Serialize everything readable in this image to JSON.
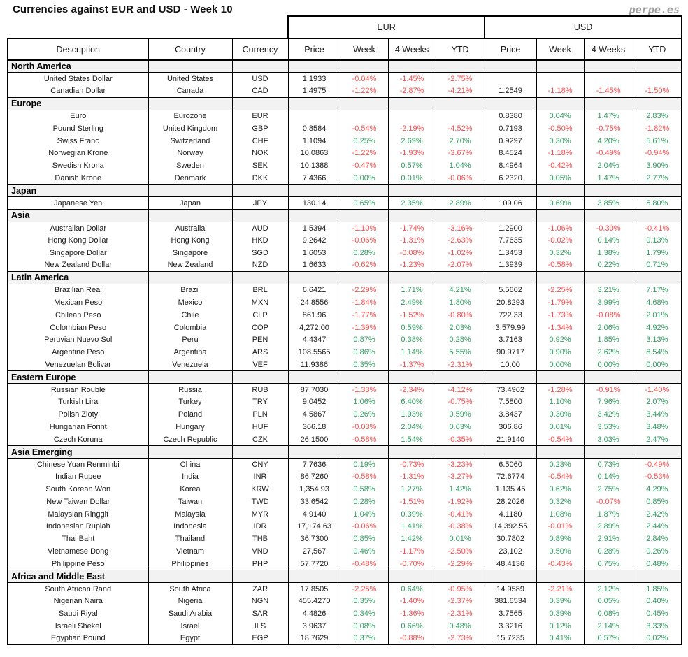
{
  "page": {
    "title": "Currencies against EUR and USD - Week 10",
    "logo": "perpe.es"
  },
  "colors": {
    "positive": "#2f9e5f",
    "negative": "#ff4b4b",
    "section_bg": "#f2f2f2",
    "logo_gray": "#9e9e9e"
  },
  "chart_data": {
    "type": "table",
    "title": "Currencies against EUR and USD - Week 10",
    "group_headers": [
      "EUR",
      "USD"
    ],
    "columns": [
      "Description",
      "Country",
      "Currency",
      "Price",
      "Week",
      "4 Weeks",
      "YTD",
      "Price",
      "Week",
      "4 Weeks",
      "YTD"
    ],
    "sections": [
      {
        "name": "North America",
        "rows": [
          {
            "description": "United States Dollar",
            "country": "United States",
            "currency": "USD",
            "eur": {
              "price": "1.1933",
              "week": "-0.04%",
              "weeks4": "-1.45%",
              "ytd": "-2.75%"
            },
            "usd": {
              "price": "",
              "week": "",
              "weeks4": "",
              "ytd": ""
            }
          },
          {
            "description": "Canadian Dollar",
            "country": "Canada",
            "currency": "CAD",
            "eur": {
              "price": "1.4975",
              "week": "-1.22%",
              "weeks4": "-2.87%",
              "ytd": "-4.21%"
            },
            "usd": {
              "price": "1.2549",
              "week": "-1.18%",
              "weeks4": "-1.45%",
              "ytd": "-1.50%"
            }
          }
        ]
      },
      {
        "name": "Europe",
        "rows": [
          {
            "description": "Euro",
            "country": "Eurozone",
            "currency": "EUR",
            "eur": {
              "price": "",
              "week": "",
              "weeks4": "",
              "ytd": ""
            },
            "usd": {
              "price": "0.8380",
              "week": "0.04%",
              "weeks4": "1.47%",
              "ytd": "2.83%"
            }
          },
          {
            "description": "Pound Sterling",
            "country": "United Kingdom",
            "currency": "GBP",
            "eur": {
              "price": "0.8584",
              "week": "-0.54%",
              "weeks4": "-2.19%",
              "ytd": "-4.52%"
            },
            "usd": {
              "price": "0.7193",
              "week": "-0.50%",
              "weeks4": "-0.75%",
              "ytd": "-1.82%"
            }
          },
          {
            "description": "Swiss Franc",
            "country": "Switzerland",
            "currency": "CHF",
            "eur": {
              "price": "1.1094",
              "week": "0.25%",
              "weeks4": "2.69%",
              "ytd": "2.70%"
            },
            "usd": {
              "price": "0.9297",
              "week": "0.30%",
              "weeks4": "4.20%",
              "ytd": "5.61%"
            }
          },
          {
            "description": "Norwegian Krone",
            "country": "Norway",
            "currency": "NOK",
            "eur": {
              "price": "10.0863",
              "week": "-1.22%",
              "weeks4": "-1.93%",
              "ytd": "-3.67%"
            },
            "usd": {
              "price": "8.4524",
              "week": "-1.18%",
              "weeks4": "-0.49%",
              "ytd": "-0.94%"
            }
          },
          {
            "description": "Swedish Krona",
            "country": "Sweden",
            "currency": "SEK",
            "eur": {
              "price": "10.1388",
              "week": "-0.47%",
              "weeks4": "0.57%",
              "ytd": "1.04%"
            },
            "usd": {
              "price": "8.4964",
              "week": "-0.42%",
              "weeks4": "2.04%",
              "ytd": "3.90%"
            }
          },
          {
            "description": "Danish Krone",
            "country": "Denmark",
            "currency": "DKK",
            "eur": {
              "price": "7.4366",
              "week": "0.00%",
              "weeks4": "0.01%",
              "ytd": "-0.06%"
            },
            "usd": {
              "price": "6.2320",
              "week": "0.05%",
              "weeks4": "1.47%",
              "ytd": "2.77%"
            }
          }
        ]
      },
      {
        "name": "Japan",
        "rows": [
          {
            "description": "Japanese Yen",
            "country": "Japan",
            "currency": "JPY",
            "eur": {
              "price": "130.14",
              "week": "0.65%",
              "weeks4": "2.35%",
              "ytd": "2.89%"
            },
            "usd": {
              "price": "109.06",
              "week": "0.69%",
              "weeks4": "3.85%",
              "ytd": "5.80%"
            }
          }
        ]
      },
      {
        "name": "Asia",
        "rows": [
          {
            "description": "Australian Dollar",
            "country": "Australia",
            "currency": "AUD",
            "eur": {
              "price": "1.5394",
              "week": "-1.10%",
              "weeks4": "-1.74%",
              "ytd": "-3.16%"
            },
            "usd": {
              "price": "1.2900",
              "week": "-1.06%",
              "weeks4": "-0.30%",
              "ytd": "-0.41%"
            }
          },
          {
            "description": "Hong Kong Dollar",
            "country": "Hong Kong",
            "currency": "HKD",
            "eur": {
              "price": "9.2642",
              "week": "-0.06%",
              "weeks4": "-1.31%",
              "ytd": "-2.63%"
            },
            "usd": {
              "price": "7.7635",
              "week": "-0.02%",
              "weeks4": "0.14%",
              "ytd": "0.13%"
            }
          },
          {
            "description": "Singapore Dollar",
            "country": "Singapore",
            "currency": "SGD",
            "eur": {
              "price": "1.6053",
              "week": "0.28%",
              "weeks4": "-0.08%",
              "ytd": "-1.02%"
            },
            "usd": {
              "price": "1.3453",
              "week": "0.32%",
              "weeks4": "1.38%",
              "ytd": "1.79%"
            }
          },
          {
            "description": "New Zealand Dollar",
            "country": "New Zealand",
            "currency": "NZD",
            "eur": {
              "price": "1.6633",
              "week": "-0.62%",
              "weeks4": "-1.23%",
              "ytd": "-2.07%"
            },
            "usd": {
              "price": "1.3939",
              "week": "-0.58%",
              "weeks4": "0.22%",
              "ytd": "0.71%"
            }
          }
        ]
      },
      {
        "name": "Latin America",
        "rows": [
          {
            "description": "Brazilian Real",
            "country": "Brazil",
            "currency": "BRL",
            "eur": {
              "price": "6.6421",
              "week": "-2.29%",
              "weeks4": "1.71%",
              "ytd": "4.21%"
            },
            "usd": {
              "price": "5.5662",
              "week": "-2.25%",
              "weeks4": "3.21%",
              "ytd": "7.17%"
            }
          },
          {
            "description": "Mexican Peso",
            "country": "Mexico",
            "currency": "MXN",
            "eur": {
              "price": "24.8556",
              "week": "-1.84%",
              "weeks4": "2.49%",
              "ytd": "1.80%"
            },
            "usd": {
              "price": "20.8293",
              "week": "-1.79%",
              "weeks4": "3.99%",
              "ytd": "4.68%"
            }
          },
          {
            "description": "Chilean Peso",
            "country": "Chile",
            "currency": "CLP",
            "eur": {
              "price": "861.96",
              "week": "-1.77%",
              "weeks4": "-1.52%",
              "ytd": "-0.80%"
            },
            "usd": {
              "price": "722.33",
              "week": "-1.73%",
              "weeks4": "-0.08%",
              "ytd": "2.01%"
            }
          },
          {
            "description": "Colombian Peso",
            "country": "Colombia",
            "currency": "COP",
            "eur": {
              "price": "4,272.00",
              "week": "-1.39%",
              "weeks4": "0.59%",
              "ytd": "2.03%"
            },
            "usd": {
              "price": "3,579.99",
              "week": "-1.34%",
              "weeks4": "2.06%",
              "ytd": "4.92%"
            }
          },
          {
            "description": "Peruvian Nuevo Sol",
            "country": "Peru",
            "currency": "PEN",
            "eur": {
              "price": "4.4347",
              "week": "0.87%",
              "weeks4": "0.38%",
              "ytd": "0.28%"
            },
            "usd": {
              "price": "3.7163",
              "week": "0.92%",
              "weeks4": "1.85%",
              "ytd": "3.13%"
            }
          },
          {
            "description": "Argentine Peso",
            "country": "Argentina",
            "currency": "ARS",
            "eur": {
              "price": "108.5565",
              "week": "0.86%",
              "weeks4": "1.14%",
              "ytd": "5.55%"
            },
            "usd": {
              "price": "90.9717",
              "week": "0.90%",
              "weeks4": "2.62%",
              "ytd": "8.54%"
            }
          },
          {
            "description": "Venezuelan Bolivar",
            "country": "Venezuela",
            "currency": "VEF",
            "eur": {
              "price": "11.9386",
              "week": "0.35%",
              "weeks4": "-1.37%",
              "ytd": "-2.31%"
            },
            "usd": {
              "price": "10.00",
              "week": "0.00%",
              "weeks4": "0.00%",
              "ytd": "0.00%"
            }
          }
        ]
      },
      {
        "name": "Eastern Europe",
        "rows": [
          {
            "description": "Russian Rouble",
            "country": "Russia",
            "currency": "RUB",
            "eur": {
              "price": "87.7030",
              "week": "-1.33%",
              "weeks4": "-2.34%",
              "ytd": "-4.12%"
            },
            "usd": {
              "price": "73.4962",
              "week": "-1.28%",
              "weeks4": "-0.91%",
              "ytd": "-1.40%"
            }
          },
          {
            "description": "Turkish Lira",
            "country": "Turkey",
            "currency": "TRY",
            "eur": {
              "price": "9.0452",
              "week": "1.06%",
              "weeks4": "6.40%",
              "ytd": "-0.75%"
            },
            "usd": {
              "price": "7.5800",
              "week": "1.10%",
              "weeks4": "7.96%",
              "ytd": "2.07%"
            }
          },
          {
            "description": "Polish Zloty",
            "country": "Poland",
            "currency": "PLN",
            "eur": {
              "price": "4.5867",
              "week": "0.26%",
              "weeks4": "1.93%",
              "ytd": "0.59%"
            },
            "usd": {
              "price": "3.8437",
              "week": "0.30%",
              "weeks4": "3.42%",
              "ytd": "3.44%"
            }
          },
          {
            "description": "Hungarian Forint",
            "country": "Hungary",
            "currency": "HUF",
            "eur": {
              "price": "366.18",
              "week": "-0.03%",
              "weeks4": "2.04%",
              "ytd": "0.63%"
            },
            "usd": {
              "price": "306.86",
              "week": "0.01%",
              "weeks4": "3.53%",
              "ytd": "3.48%"
            }
          },
          {
            "description": "Czech Koruna",
            "country": "Czech Republic",
            "currency": "CZK",
            "eur": {
              "price": "26.1500",
              "week": "-0.58%",
              "weeks4": "1.54%",
              "ytd": "-0.35%"
            },
            "usd": {
              "price": "21.9140",
              "week": "-0.54%",
              "weeks4": "3.03%",
              "ytd": "2.47%"
            }
          }
        ]
      },
      {
        "name": "Asia Emerging",
        "rows": [
          {
            "description": "Chinese Yuan Renminbi",
            "country": "China",
            "currency": "CNY",
            "eur": {
              "price": "7.7636",
              "week": "0.19%",
              "weeks4": "-0.73%",
              "ytd": "-3.23%"
            },
            "usd": {
              "price": "6.5060",
              "week": "0.23%",
              "weeks4": "0.73%",
              "ytd": "-0.49%"
            }
          },
          {
            "description": "Indian Rupee",
            "country": "India",
            "currency": "INR",
            "eur": {
              "price": "86.7260",
              "week": "-0.58%",
              "weeks4": "-1.31%",
              "ytd": "-3.27%"
            },
            "usd": {
              "price": "72.6774",
              "week": "-0.54%",
              "weeks4": "0.14%",
              "ytd": "-0.53%"
            }
          },
          {
            "description": "South Korean Won",
            "country": "Korea",
            "currency": "KRW",
            "eur": {
              "price": "1,354.93",
              "week": "0.58%",
              "weeks4": "1.27%",
              "ytd": "1.42%"
            },
            "usd": {
              "price": "1,135.45",
              "week": "0.62%",
              "weeks4": "2.75%",
              "ytd": "4.29%"
            }
          },
          {
            "description": "New Taiwan Dollar",
            "country": "Taiwan",
            "currency": "TWD",
            "eur": {
              "price": "33.6542",
              "week": "0.28%",
              "weeks4": "-1.51%",
              "ytd": "-1.92%"
            },
            "usd": {
              "price": "28.2026",
              "week": "0.32%",
              "weeks4": "-0.07%",
              "ytd": "0.85%"
            }
          },
          {
            "description": "Malaysian Ringgit",
            "country": "Malaysia",
            "currency": "MYR",
            "eur": {
              "price": "4.9140",
              "week": "1.04%",
              "weeks4": "0.39%",
              "ytd": "-0.41%"
            },
            "usd": {
              "price": "4.1180",
              "week": "1.08%",
              "weeks4": "1.87%",
              "ytd": "2.42%"
            }
          },
          {
            "description": "Indonesian Rupiah",
            "country": "Indonesia",
            "currency": "IDR",
            "eur": {
              "price": "17,174.63",
              "week": "-0.06%",
              "weeks4": "1.41%",
              "ytd": "-0.38%"
            },
            "usd": {
              "price": "14,392.55",
              "week": "-0.01%",
              "weeks4": "2.89%",
              "ytd": "2.44%"
            }
          },
          {
            "description": "Thai Baht",
            "country": "Thailand",
            "currency": "THB",
            "eur": {
              "price": "36.7300",
              "week": "0.85%",
              "weeks4": "1.42%",
              "ytd": "0.01%"
            },
            "usd": {
              "price": "30.7802",
              "week": "0.89%",
              "weeks4": "2.91%",
              "ytd": "2.84%"
            }
          },
          {
            "description": "Vietnamese Dong",
            "country": "Vietnam",
            "currency": "VND",
            "eur": {
              "price": "27,567",
              "week": "0.46%",
              "weeks4": "-1.17%",
              "ytd": "-2.50%"
            },
            "usd": {
              "price": "23,102",
              "week": "0.50%",
              "weeks4": "0.28%",
              "ytd": "0.26%"
            }
          },
          {
            "description": "Philippine Peso",
            "country": "Philippines",
            "currency": "PHP",
            "eur": {
              "price": "57.7720",
              "week": "-0.48%",
              "weeks4": "-0.70%",
              "ytd": "-2.29%"
            },
            "usd": {
              "price": "48.4136",
              "week": "-0.43%",
              "weeks4": "0.75%",
              "ytd": "0.48%"
            }
          }
        ]
      },
      {
        "name": "Africa and Middle East",
        "rows": [
          {
            "description": "South African Rand",
            "country": "South Africa",
            "currency": "ZAR",
            "eur": {
              "price": "17.8505",
              "week": "-2.25%",
              "weeks4": "0.64%",
              "ytd": "-0.95%"
            },
            "usd": {
              "price": "14.9589",
              "week": "-2.21%",
              "weeks4": "2.12%",
              "ytd": "1.85%"
            }
          },
          {
            "description": "Nigerian Naira",
            "country": "Nigeria",
            "currency": "NGN",
            "eur": {
              "price": "455.4270",
              "week": "0.35%",
              "weeks4": "-1.40%",
              "ytd": "-2.37%"
            },
            "usd": {
              "price": "381.6534",
              "week": "0.39%",
              "weeks4": "0.05%",
              "ytd": "0.40%"
            }
          },
          {
            "description": "Saudi Riyal",
            "country": "Saudi Arabia",
            "currency": "SAR",
            "eur": {
              "price": "4.4826",
              "week": "0.34%",
              "weeks4": "-1.36%",
              "ytd": "-2.31%"
            },
            "usd": {
              "price": "3.7565",
              "week": "0.39%",
              "weeks4": "0.08%",
              "ytd": "0.45%"
            }
          },
          {
            "description": "Israeli Shekel",
            "country": "Israel",
            "currency": "ILS",
            "eur": {
              "price": "3.9637",
              "week": "0.08%",
              "weeks4": "0.66%",
              "ytd": "0.48%"
            },
            "usd": {
              "price": "3.3216",
              "week": "0.12%",
              "weeks4": "2.14%",
              "ytd": "3.33%"
            }
          },
          {
            "description": "Egyptian Pound",
            "country": "Egypt",
            "currency": "EGP",
            "eur": {
              "price": "18.7629",
              "week": "0.37%",
              "weeks4": "-0.88%",
              "ytd": "-2.73%"
            },
            "usd": {
              "price": "15.7235",
              "week": "0.41%",
              "weeks4": "0.57%",
              "ytd": "0.02%"
            }
          }
        ]
      }
    ]
  }
}
